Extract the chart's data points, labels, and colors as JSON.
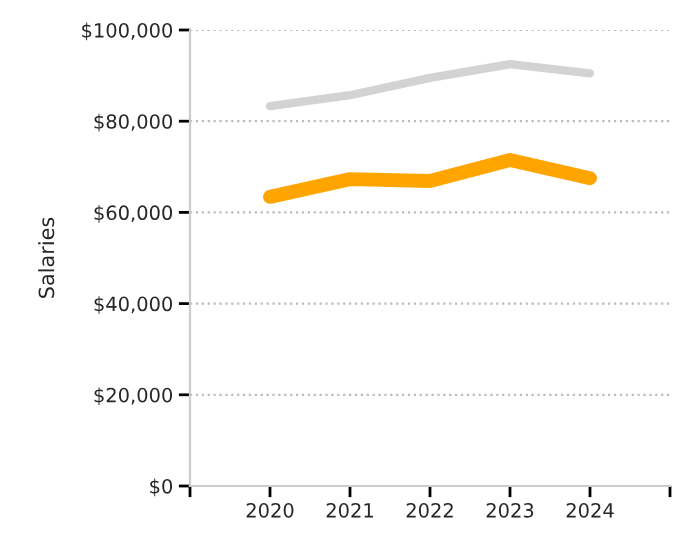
{
  "chart_data": {
    "type": "line",
    "ylabel": "Salaries",
    "x": [
      2020,
      2021,
      2022,
      2023,
      2024
    ],
    "series": [
      {
        "color": "#d3d3d3",
        "values": [
          83300,
          85700,
          89500,
          92500,
          90500
        ]
      },
      {
        "color": "#ffa500",
        "values": [
          63400,
          67300,
          66900,
          71500,
          67500
        ]
      }
    ],
    "xlim": [
      2019,
      2025
    ],
    "xticks": [
      {
        "value": 2019,
        "label": null
      },
      2020,
      2021,
      2022,
      2023,
      2024,
      {
        "value": 2025,
        "label": null
      }
    ],
    "ylim": [
      0,
      100000
    ],
    "yticks": [
      {
        "value": 0,
        "label": "$0"
      },
      {
        "value": 20000,
        "label": "$20,000"
      },
      {
        "value": 40000,
        "label": "$40,000"
      },
      {
        "value": 60000,
        "label": "$60,000"
      },
      {
        "value": 80000,
        "label": "$80,000"
      },
      {
        "value": 100000,
        "label": "$100,000"
      }
    ],
    "grid": "y",
    "legend": false,
    "marker": "none",
    "line_style": "solid"
  }
}
